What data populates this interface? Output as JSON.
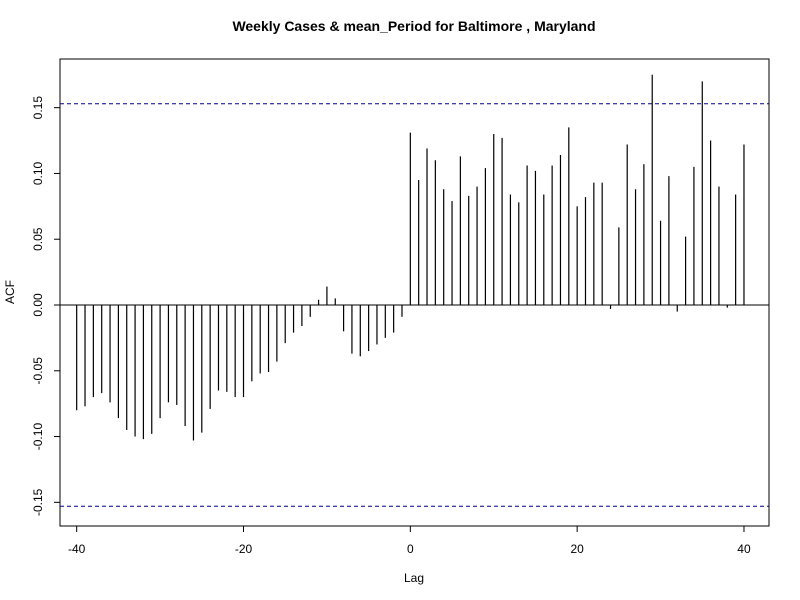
{
  "chart_data": {
    "type": "bar",
    "title": "Weekly Cases & mean_Period for Baltimore , Maryland",
    "xlabel": "Lag",
    "ylabel": "ACF",
    "xlim": [
      -42,
      43
    ],
    "ylim": [
      -0.168,
      0.187
    ],
    "x_ticks": [
      -40,
      -20,
      0,
      20,
      40
    ],
    "x_tick_labels": [
      "-40",
      "-20",
      "0",
      "20",
      "40"
    ],
    "y_ticks": [
      -0.15,
      -0.1,
      -0.05,
      0.0,
      0.05,
      0.1,
      0.15
    ],
    "y_tick_labels": [
      "-0.15",
      "-0.10",
      "-0.05",
      "0.00",
      "0.05",
      "0.10",
      "0.15"
    ],
    "confidence_bounds": [
      0.153,
      -0.153
    ],
    "grid": false,
    "colors": {
      "bars": "#000000",
      "bounds": "#00008b",
      "zero_line": "#000000"
    },
    "lags": [
      -40,
      -39,
      -38,
      -37,
      -36,
      -35,
      -34,
      -33,
      -32,
      -31,
      -30,
      -29,
      -28,
      -27,
      -26,
      -25,
      -24,
      -23,
      -22,
      -21,
      -20,
      -19,
      -18,
      -17,
      -16,
      -15,
      -14,
      -13,
      -12,
      -11,
      -10,
      -9,
      -8,
      -7,
      -6,
      -5,
      -4,
      -3,
      -2,
      -1,
      0,
      1,
      2,
      3,
      4,
      5,
      6,
      7,
      8,
      9,
      10,
      11,
      12,
      13,
      14,
      15,
      16,
      17,
      18,
      19,
      20,
      21,
      22,
      23,
      24,
      25,
      26,
      27,
      28,
      29,
      30,
      31,
      32,
      33,
      34,
      35,
      36,
      37,
      38,
      39,
      40
    ],
    "values": [
      -0.08,
      -0.077,
      -0.07,
      -0.067,
      -0.074,
      -0.086,
      -0.095,
      -0.1,
      -0.102,
      -0.098,
      -0.086,
      -0.074,
      -0.076,
      -0.092,
      -0.103,
      -0.097,
      -0.079,
      -0.065,
      -0.066,
      -0.07,
      -0.07,
      -0.058,
      -0.052,
      -0.051,
      -0.043,
      -0.029,
      -0.021,
      -0.016,
      -0.009,
      0.004,
      0.014,
      0.005,
      -0.02,
      -0.037,
      -0.039,
      -0.035,
      -0.03,
      -0.025,
      -0.021,
      -0.009,
      0.131,
      0.095,
      0.119,
      0.11,
      0.088,
      0.079,
      0.113,
      0.083,
      0.09,
      0.104,
      0.13,
      0.127,
      0.084,
      0.078,
      0.106,
      0.102,
      0.084,
      0.106,
      0.114,
      0.135,
      0.075,
      0.082,
      0.093,
      0.093,
      -0.003,
      0.059,
      0.122,
      0.088,
      0.107,
      0.175,
      0.064,
      0.098,
      -0.005,
      0.052,
      0.105,
      0.17,
      0.125,
      0.09,
      -0.002,
      0.084,
      0.122
    ]
  }
}
